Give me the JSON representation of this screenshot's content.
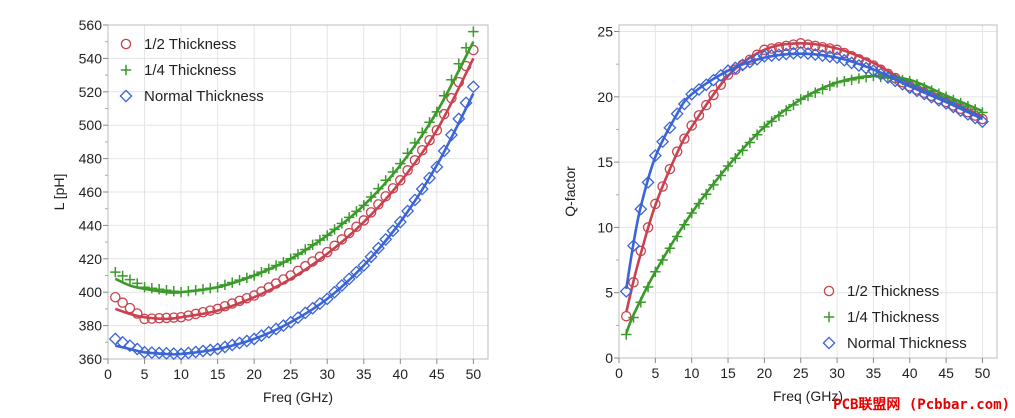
{
  "colors": {
    "half": "#c8424f",
    "quarter": "#3a9a2a",
    "normal": "#3b64d6"
  },
  "watermark": "PCB联盟网 (Pcbbar.com)",
  "chart_data": [
    {
      "type": "line",
      "xlabel": "Freq (GHz)",
      "ylabel": "L [pH]",
      "xlim": [
        0,
        52
      ],
      "ylim": [
        360,
        560
      ],
      "xticks": [
        0,
        5,
        10,
        15,
        20,
        25,
        30,
        35,
        40,
        45,
        50
      ],
      "yticks": [
        360,
        380,
        400,
        420,
        440,
        460,
        480,
        500,
        520,
        540,
        560
      ],
      "legend_position": "top-left",
      "grid": true,
      "series": [
        {
          "name": "1/2 Thickness",
          "marker": "circle",
          "color": "#c8424f",
          "points": [
            [
              1,
              397
            ],
            [
              5,
              384
            ],
            [
              10,
              385
            ],
            [
              15,
              390
            ],
            [
              20,
              398
            ],
            [
              25,
              410
            ],
            [
              30,
              424
            ],
            [
              35,
              443
            ],
            [
              40,
              467
            ],
            [
              45,
              497
            ],
            [
              50,
              545
            ]
          ],
          "fit": [
            [
              1,
              390
            ],
            [
              3,
              387
            ],
            [
              5,
              385
            ],
            [
              8,
              384
            ],
            [
              10,
              385
            ],
            [
              15,
              389
            ],
            [
              20,
              397
            ],
            [
              25,
              408
            ],
            [
              30,
              423
            ],
            [
              35,
              442
            ],
            [
              40,
              466
            ],
            [
              45,
              497
            ],
            [
              50,
              540
            ]
          ]
        },
        {
          "name": "1/4 Thickness",
          "marker": "plus",
          "color": "#3a9a2a",
          "points": [
            [
              1,
              412
            ],
            [
              5,
              403
            ],
            [
              10,
              400
            ],
            [
              15,
              403
            ],
            [
              20,
              410
            ],
            [
              25,
              420
            ],
            [
              30,
              434
            ],
            [
              35,
              452
            ],
            [
              40,
              477
            ],
            [
              45,
              508
            ],
            [
              50,
              556
            ]
          ],
          "fit": [
            [
              1,
              408
            ],
            [
              3,
              404
            ],
            [
              5,
              402
            ],
            [
              8,
              400
            ],
            [
              10,
              400
            ],
            [
              15,
              403
            ],
            [
              20,
              410
            ],
            [
              25,
              420
            ],
            [
              30,
              434
            ],
            [
              35,
              452
            ],
            [
              40,
              476
            ],
            [
              45,
              508
            ],
            [
              50,
              550
            ]
          ]
        },
        {
          "name": "Normal Thickness",
          "marker": "diamond",
          "color": "#3b64d6",
          "points": [
            [
              1,
              372
            ],
            [
              5,
              364
            ],
            [
              10,
              363
            ],
            [
              15,
              366
            ],
            [
              20,
              372
            ],
            [
              25,
              382
            ],
            [
              30,
              396
            ],
            [
              35,
              416
            ],
            [
              40,
              442
            ],
            [
              45,
              475
            ],
            [
              50,
              523
            ]
          ],
          "fit": [
            [
              1,
              368
            ],
            [
              3,
              366
            ],
            [
              5,
              364
            ],
            [
              8,
              363
            ],
            [
              10,
              363
            ],
            [
              15,
              366
            ],
            [
              20,
              372
            ],
            [
              25,
              382
            ],
            [
              30,
              396
            ],
            [
              35,
              416
            ],
            [
              40,
              442
            ],
            [
              45,
              476
            ],
            [
              50,
              519
            ]
          ]
        }
      ]
    },
    {
      "type": "line",
      "xlabel": "Freq (GHz)",
      "ylabel": "Q-factor",
      "xlim": [
        0,
        52
      ],
      "ylim": [
        0,
        25.5
      ],
      "xticks": [
        0,
        5,
        10,
        15,
        20,
        25,
        30,
        35,
        40,
        45,
        50
      ],
      "yticks": [
        0,
        5,
        10,
        15,
        20,
        25
      ],
      "legend_position": "bottom-right",
      "grid": true,
      "series": [
        {
          "name": "1/2 Thickness",
          "marker": "circle",
          "color": "#c8424f",
          "points": [
            [
              1,
              3.2
            ],
            [
              2,
              5.8
            ],
            [
              3,
              8.2
            ],
            [
              5,
              11.8
            ],
            [
              8,
              15.8
            ],
            [
              10,
              17.8
            ],
            [
              15,
              21.7
            ],
            [
              20,
              23.6
            ],
            [
              25,
              24.1
            ],
            [
              30,
              23.6
            ],
            [
              35,
              22.4
            ],
            [
              40,
              20.8
            ],
            [
              45,
              19.6
            ],
            [
              50,
              18.3
            ]
          ],
          "fit": [
            [
              1,
              3.5
            ],
            [
              2,
              5.9
            ],
            [
              3,
              8.0
            ],
            [
              5,
              11.7
            ],
            [
              8,
              15.7
            ],
            [
              10,
              17.7
            ],
            [
              15,
              21.6
            ],
            [
              20,
              23.6
            ],
            [
              25,
              24.1
            ],
            [
              30,
              23.7
            ],
            [
              35,
              22.6
            ],
            [
              40,
              21.0
            ],
            [
              45,
              19.7
            ],
            [
              50,
              18.5
            ]
          ]
        },
        {
          "name": "1/4 Thickness",
          "marker": "plus",
          "color": "#3a9a2a",
          "points": [
            [
              1,
              1.8
            ],
            [
              2,
              3.1
            ],
            [
              5,
              6.6
            ],
            [
              10,
              11.1
            ],
            [
              15,
              14.7
            ],
            [
              20,
              17.7
            ],
            [
              25,
              19.8
            ],
            [
              30,
              21.1
            ],
            [
              35,
              21.6
            ],
            [
              40,
              21.2
            ],
            [
              45,
              20.0
            ],
            [
              50,
              18.8
            ]
          ],
          "fit": [
            [
              1,
              1.9
            ],
            [
              2,
              3.3
            ],
            [
              5,
              6.6
            ],
            [
              10,
              11.1
            ],
            [
              15,
              14.7
            ],
            [
              20,
              17.7
            ],
            [
              25,
              19.8
            ],
            [
              30,
              21.1
            ],
            [
              35,
              21.6
            ],
            [
              40,
              21.3
            ],
            [
              45,
              20.1
            ],
            [
              50,
              18.9
            ]
          ]
        },
        {
          "name": "Normal Thickness",
          "marker": "diamond",
          "color": "#3b64d6",
          "points": [
            [
              1,
              5.1
            ],
            [
              2,
              8.6
            ],
            [
              3,
              11.4
            ],
            [
              5,
              15.5
            ],
            [
              8,
              18.7
            ],
            [
              10,
              20.2
            ],
            [
              15,
              22.0
            ],
            [
              20,
              23.1
            ],
            [
              25,
              23.4
            ],
            [
              30,
              23.0
            ],
            [
              35,
              22.0
            ],
            [
              40,
              20.7
            ],
            [
              45,
              19.5
            ],
            [
              50,
              18.1
            ]
          ],
          "fit": [
            [
              1,
              5.3
            ],
            [
              2,
              8.8
            ],
            [
              3,
              11.6
            ],
            [
              5,
              15.4
            ],
            [
              8,
              18.7
            ],
            [
              10,
              20.2
            ],
            [
              15,
              22.0
            ],
            [
              20,
              23.0
            ],
            [
              25,
              23.3
            ],
            [
              30,
              23.0
            ],
            [
              35,
              22.1
            ],
            [
              40,
              20.8
            ],
            [
              45,
              19.6
            ],
            [
              50,
              18.3
            ]
          ]
        }
      ]
    }
  ]
}
